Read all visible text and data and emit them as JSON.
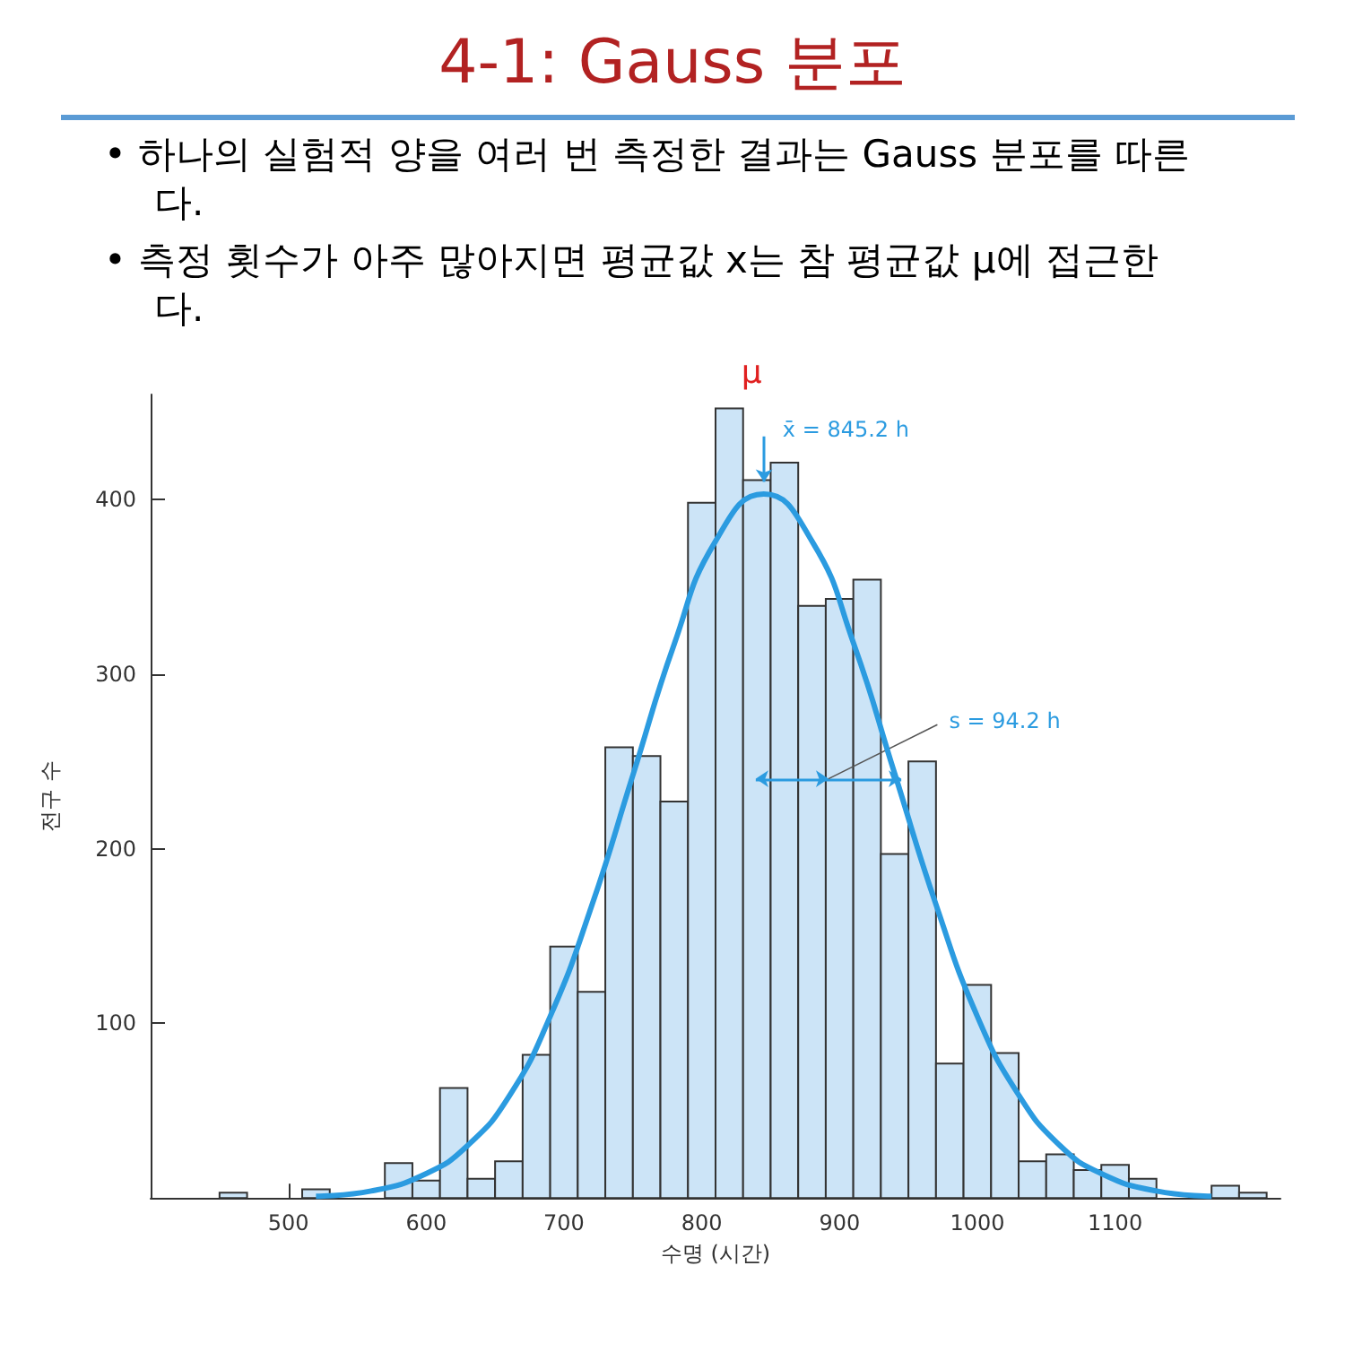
{
  "chart_data": {
    "type": "histogram",
    "title": "4-1: Gauss 분포",
    "annotations": [
      "• 하나의 실험적 양을 여러 번 측정한 결과는 Gauss 분포를 따른다.",
      "• 측정 횟수가 아주 많아지면 평균값 x는 참 평균값 μ에 접근한다.",
      {
        "text": "x̄ = 845.2 h",
        "x": 845.2,
        "y": 403
      },
      {
        "text": "s = 94.2 h",
        "x": 892,
        "y": 240
      },
      "μ"
    ],
    "xlabel": "수명 (시간)",
    "ylabel": "전구 수",
    "series": [
      {
        "color": "#cce4f7",
        "bins": [
          450,
          470,
          490,
          510,
          530,
          550,
          570,
          590,
          610,
          630,
          650,
          670,
          690,
          710,
          730,
          750,
          770,
          790,
          810,
          830,
          850,
          870,
          890,
          910,
          930,
          950,
          970,
          990,
          1010,
          1030,
          1050,
          1070,
          1090,
          1110,
          1130,
          1150,
          1170,
          1190,
          1210
        ],
        "values": [
          3,
          0,
          0,
          5,
          0,
          0,
          20,
          10,
          63,
          11,
          21,
          82,
          144,
          118,
          258,
          253,
          227,
          398,
          452,
          411,
          421,
          339,
          343,
          354,
          197,
          250,
          77,
          122,
          83,
          21,
          25,
          16,
          19,
          11,
          0,
          0,
          7,
          3
        ]
      },
      {
        "type": "line",
        "color": "#2b9be0",
        "x": [
          520,
          560,
          600,
          630,
          660,
          690,
          720,
          750,
          780,
          810,
          845,
          880,
          910,
          940,
          970,
          1000,
          1030,
          1060,
          1090,
          1130,
          1170
        ],
        "values": [
          1,
          4,
          14,
          30,
          58,
          104,
          167,
          242,
          317,
          376,
          403,
          376,
          318,
          243,
          168,
          104,
          59,
          30,
          14,
          4,
          1
        ]
      }
    ],
    "xlim": [
      400,
      1220
    ],
    "xticks": [
      500,
      600,
      700,
      800,
      900,
      1000,
      1100
    ],
    "ylim": [
      0,
      460
    ],
    "yticks": [
      100,
      200,
      300,
      400
    ]
  }
}
